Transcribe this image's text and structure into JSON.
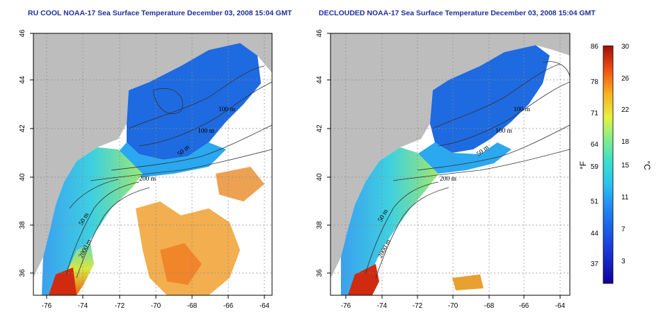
{
  "left_panel": {
    "title": "RU COOL NOAA-17 Sea Surface Temperature December 03, 2008 15:04 GMT",
    "x_ticks": [
      "-76",
      "-74",
      "-72",
      "-70",
      "-68",
      "-66",
      "-64"
    ],
    "y_ticks": [
      "46",
      "44",
      "42",
      "40",
      "38",
      "36"
    ],
    "contour_labels": [
      "100 m",
      "100 m",
      "50 m",
      "200 m",
      "50 m",
      "2000 m"
    ]
  },
  "right_panel": {
    "title": "DECLOUDED NOAA-17 Sea Surface Temperature December 03, 2008 15:04 GMT",
    "x_ticks": [
      "-76",
      "-74",
      "-72",
      "-70",
      "-68",
      "-66",
      "-64"
    ],
    "y_ticks": [
      "46",
      "44",
      "42",
      "40",
      "38",
      "36"
    ],
    "contour_labels": [
      "100 m",
      "100 m",
      "50 m",
      "200 m",
      "50 m",
      "2000 m"
    ]
  },
  "colorbar": {
    "fahrenheit_ticks": [
      "86",
      "78",
      "71",
      "64",
      "59",
      "51",
      "44",
      "37"
    ],
    "celsius_ticks": [
      "30",
      "26",
      "22",
      "18",
      "15",
      "11",
      "7",
      "3"
    ],
    "fahrenheit_unit": "°F",
    "celsius_unit": "°C"
  },
  "colors": {
    "land": "#bdbdbd",
    "title": "#1f2f9a",
    "cold": "#1a5ad8",
    "warm": "#e0501a"
  }
}
